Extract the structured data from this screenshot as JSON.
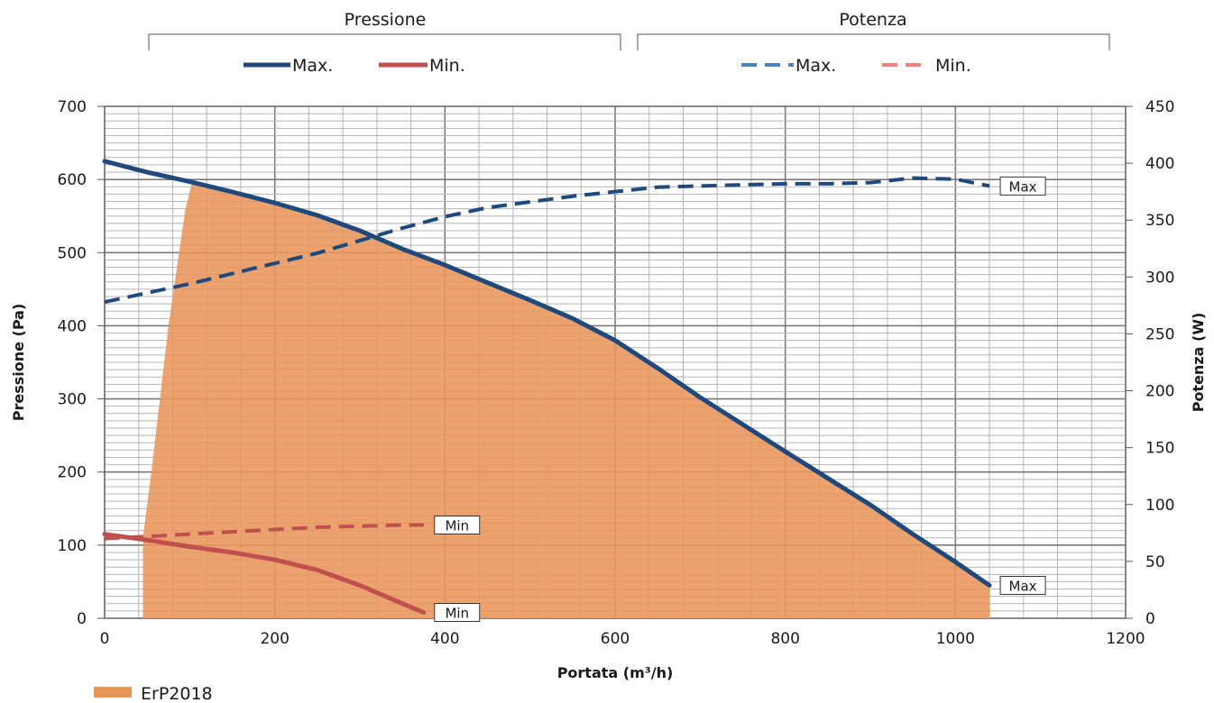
{
  "chart_data": {
    "type": "line",
    "title_fragment": "",
    "xlabel": "Portata (m³/h)",
    "ylabel_left": "Pressione (Pa)",
    "ylabel_right": "Potenza (W)",
    "xlim": [
      0,
      1200
    ],
    "ylim_left": [
      0,
      700
    ],
    "ylim_right": [
      0,
      450
    ],
    "x_ticks": [
      "0",
      "200",
      "400",
      "600",
      "800",
      "1000",
      "1200"
    ],
    "y_left_ticks": [
      "0",
      "100",
      "200",
      "300",
      "400",
      "500",
      "600",
      "700"
    ],
    "y_right_ticks": [
      "0",
      "50",
      "100",
      "150",
      "200",
      "250",
      "300",
      "350",
      "400",
      "450"
    ],
    "grid": true,
    "groups": {
      "pressure_label": "Pressione",
      "power_label": "Potenza"
    },
    "legend": {
      "pressure_max": "Max.",
      "pressure_min": "Min.",
      "power_max": "Max.",
      "power_min": "Min.",
      "area": "ErP2018"
    },
    "colors": {
      "max": "#1f497d",
      "min": "#c0504d",
      "power_max_legend": "#4f81bd",
      "power_min_legend": "#f08080",
      "area": "#e8955a",
      "grid": "#aaaaaa"
    },
    "series": [
      {
        "name": "Max.",
        "group": "Pressione",
        "axis": "left",
        "style": "solid",
        "x": [
          0,
          50,
          100,
          150,
          200,
          250,
          300,
          350,
          400,
          450,
          500,
          550,
          600,
          650,
          700,
          800,
          900,
          950,
          1000,
          1040
        ],
        "y": [
          625,
          610,
          597,
          583,
          568,
          551,
          530,
          505,
          483,
          459,
          435,
          410,
          380,
          342,
          302,
          228,
          155,
          115,
          77,
          45
        ]
      },
      {
        "name": "Min.",
        "group": "Pressione",
        "axis": "left",
        "style": "solid",
        "x": [
          0,
          50,
          100,
          150,
          200,
          250,
          300,
          340,
          375
        ],
        "y": [
          115,
          107,
          98,
          90,
          80,
          66,
          45,
          25,
          8
        ]
      },
      {
        "name": "Max.",
        "group": "Potenza",
        "axis": "right",
        "style": "dashed",
        "x": [
          0,
          50,
          100,
          150,
          200,
          250,
          300,
          350,
          400,
          450,
          500,
          550,
          600,
          650,
          700,
          750,
          800,
          850,
          900,
          950,
          1000,
          1040
        ],
        "y": [
          278,
          286,
          294,
          303,
          312,
          321,
          332,
          343,
          353,
          361,
          366,
          371,
          375,
          379,
          380,
          381,
          382,
          382,
          383,
          387,
          386,
          380
        ]
      },
      {
        "name": "Min.",
        "group": "Potenza",
        "axis": "right",
        "style": "dashed",
        "x": [
          0,
          50,
          100,
          150,
          200,
          250,
          300,
          350,
          375
        ],
        "y": [
          70,
          72,
          74,
          76,
          78,
          80,
          81,
          82,
          82
        ]
      }
    ],
    "area": {
      "name": "ErP2018",
      "axis": "left",
      "x": [
        45,
        55,
        65,
        75,
        85,
        95,
        103,
        150,
        200,
        250,
        300,
        350,
        400,
        450,
        500,
        550,
        600,
        650,
        700,
        800,
        900,
        950,
        1000,
        1040,
        1040,
        45
      ],
      "y": [
        110,
        200,
        300,
        400,
        480,
        560,
        597,
        583,
        568,
        551,
        530,
        505,
        483,
        459,
        435,
        410,
        380,
        342,
        302,
        228,
        155,
        115,
        77,
        45,
        0,
        0
      ]
    },
    "annotations": [
      {
        "text": "Max",
        "target": "pressure_max"
      },
      {
        "text": "Max",
        "target": "power_max"
      },
      {
        "text": "Min",
        "target": "pressure_min"
      },
      {
        "text": "Min",
        "target": "power_min"
      }
    ]
  }
}
